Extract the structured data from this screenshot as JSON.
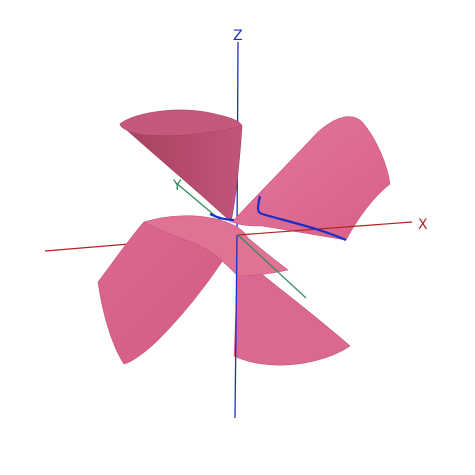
{
  "figure": {
    "axis_labels": {
      "x": "X",
      "z": "Z",
      "y": "Y"
    },
    "colors": {
      "background": "#ffffff",
      "surface_fill": "#de6890",
      "surface_light": "#e7829f",
      "surface_shade": "#b94f73",
      "x_axis": "#b22222",
      "y_axis": "#2e8b57",
      "z_axis": "#1f2fbf",
      "curve": "#1530cc"
    }
  }
}
